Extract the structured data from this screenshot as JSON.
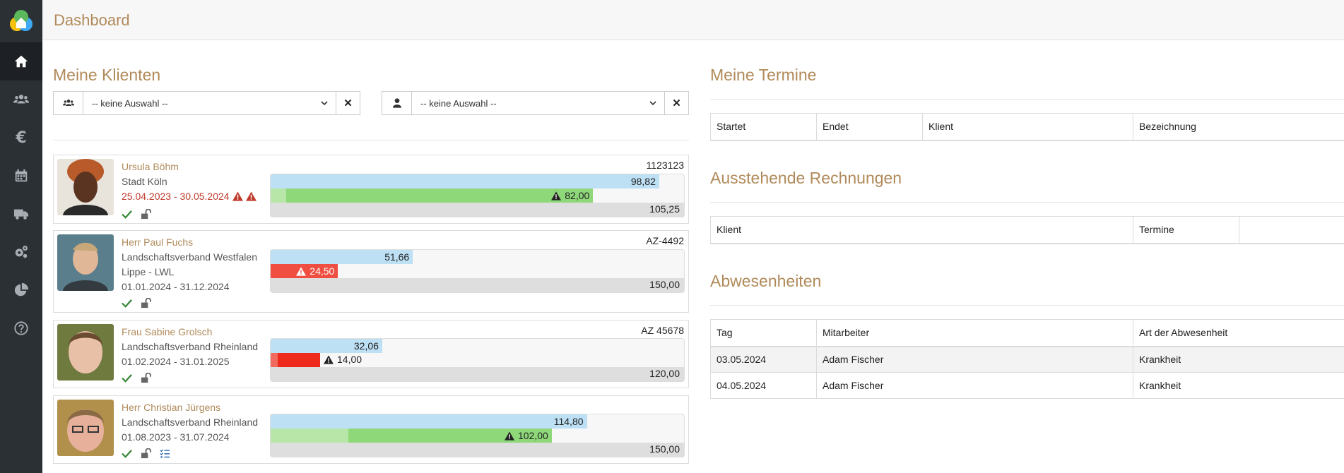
{
  "header": {
    "title": "Dashboard"
  },
  "nav": [
    "home",
    "clients",
    "finance",
    "calendar",
    "transport",
    "settings",
    "reports",
    "help"
  ],
  "clients_section": {
    "title": "Meine Klienten",
    "filter1": {
      "value": "-- keine Auswahl --"
    },
    "filter2": {
      "value": "-- keine Auswahl --"
    },
    "items": [
      {
        "name": "Ursula Böhm",
        "org": "Stadt Köln",
        "dates": "25.04.2023 - 30.05.2024",
        "az": "1123123",
        "bar1": "98,82",
        "bar2": "82,00",
        "total": "105,25",
        "progress_blue": 0.939,
        "progress_second": 0.779
      },
      {
        "name": "Herr Paul Fuchs",
        "org": "Landschaftsverband Westfalen",
        "org2": "Lippe - LWL",
        "dates": "01.01.2024 - 31.12.2024",
        "az": "AZ-4492",
        "bar1": "51,66",
        "bar2": "24,50",
        "total": "150,00",
        "progress_blue": 0.344,
        "progress_second": 0.163
      },
      {
        "name": "Frau Sabine Grolsch",
        "org": "Landschaftsverband Rheinland",
        "dates": "01.02.2024 - 31.01.2025",
        "az": "AZ 45678",
        "bar1": "32,06",
        "bar2": "14,00",
        "total": "120,00",
        "progress_blue": 0.267,
        "progress_second": 0.117
      },
      {
        "name": "Herr Christian Jürgens",
        "org": "Landschaftsverband Rheinland",
        "dates": "01.08.2023 - 31.07.2024",
        "az": "",
        "bar1": "114,80",
        "bar2": "102,00",
        "total": "150,00",
        "progress_blue": 0.765,
        "progress_second": 0.68
      }
    ]
  },
  "termine": {
    "title": "Meine Termine",
    "columns": [
      "Startet",
      "Endet",
      "Klient",
      "Bezeichnung"
    ]
  },
  "rechnungen": {
    "title": "Ausstehende Rechnungen",
    "columns": [
      "Klient",
      "Termine"
    ]
  },
  "abwesenheiten": {
    "title": "Abwesenheiten",
    "columns": [
      "Tag",
      "Mitarbeiter",
      "Art der Abwesenheit"
    ],
    "rows": [
      {
        "tag": "03.05.2024",
        "mitarbeiter": "Adam Fischer",
        "art": "Krankheit"
      },
      {
        "tag": "04.05.2024",
        "mitarbeiter": "Adam Fischer",
        "art": "Krankheit"
      }
    ]
  },
  "colors": {
    "accent": "#b08a5a",
    "sidebar": "#2b3035",
    "blue_bar": "#bde0f5",
    "green_bar": "#8fd87a",
    "red_bar": "#ee2a1d"
  }
}
